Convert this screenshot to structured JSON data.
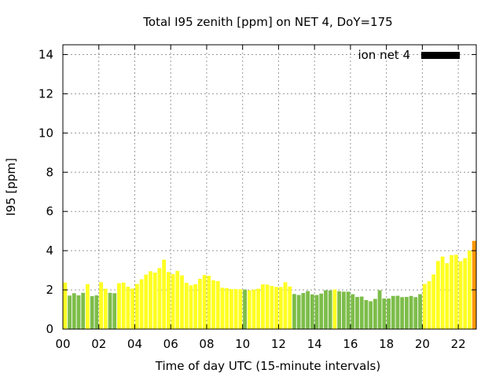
{
  "chart_data": {
    "type": "bar",
    "title": "Total I95 zenith [ppm] on NET 4, DoY=175",
    "xlabel": "Time of day UTC (15-minute intervals)",
    "ylabel": "I95 [ppm]",
    "xlim": [
      0,
      23
    ],
    "ylim": [
      0,
      14.5
    ],
    "x_ticks": [
      0,
      2,
      4,
      6,
      8,
      10,
      12,
      14,
      16,
      18,
      20,
      22
    ],
    "x_tick_labels": [
      "00",
      "02",
      "04",
      "06",
      "08",
      "10",
      "12",
      "14",
      "16",
      "18",
      "20",
      "22"
    ],
    "y_ticks": [
      0,
      2,
      4,
      6,
      8,
      10,
      12,
      14
    ],
    "y_tick_labels": [
      "0",
      "2",
      "4",
      "6",
      "8",
      "10",
      "12",
      "14"
    ],
    "grid": true,
    "legend": {
      "placement": "top-right",
      "label": "ion net 4",
      "color": "#000000"
    },
    "colors": {
      "yellow": "#ffff22",
      "green": "#7dbd4a",
      "orange": "#ff9900"
    },
    "bar_interval_hours": 0.25,
    "series": [
      {
        "values": [
          2.37,
          1.71,
          1.83,
          1.72,
          1.85,
          2.29,
          1.68,
          1.72,
          2.39,
          2.06,
          1.85,
          1.83,
          2.34,
          2.37,
          2.16,
          2.07,
          2.3,
          2.54,
          2.78,
          2.95,
          2.88,
          3.11,
          3.54,
          2.91,
          2.8,
          2.97,
          2.74,
          2.36,
          2.23,
          2.29,
          2.56,
          2.76,
          2.72,
          2.49,
          2.45,
          2.11,
          2.09,
          2.04,
          2.04,
          2.03,
          2.02,
          1.98,
          2.02,
          2.06,
          2.28,
          2.27,
          2.2,
          2.15,
          2.15,
          2.39,
          2.17,
          1.79,
          1.74,
          1.84,
          1.94,
          1.77,
          1.74,
          1.81,
          1.98,
          1.97,
          2.02,
          1.93,
          1.91,
          1.91,
          1.78,
          1.64,
          1.66,
          1.48,
          1.42,
          1.54,
          1.98,
          1.56,
          1.56,
          1.69,
          1.7,
          1.63,
          1.64,
          1.69,
          1.63,
          1.78,
          2.3,
          2.44,
          2.79,
          3.47,
          3.7,
          3.36,
          3.77,
          3.79,
          3.46,
          3.62,
          4.0,
          4.5
        ],
        "colors": [
          "yellow",
          "green",
          "green",
          "green",
          "green",
          "yellow",
          "green",
          "green",
          "yellow",
          "yellow",
          "green",
          "green",
          "yellow",
          "yellow",
          "yellow",
          "yellow",
          "yellow",
          "yellow",
          "yellow",
          "yellow",
          "yellow",
          "yellow",
          "yellow",
          "yellow",
          "yellow",
          "yellow",
          "yellow",
          "yellow",
          "yellow",
          "yellow",
          "yellow",
          "yellow",
          "yellow",
          "yellow",
          "yellow",
          "yellow",
          "yellow",
          "yellow",
          "yellow",
          "yellow",
          "green",
          "yellow",
          "yellow",
          "yellow",
          "yellow",
          "yellow",
          "yellow",
          "yellow",
          "yellow",
          "yellow",
          "yellow",
          "green",
          "green",
          "green",
          "green",
          "green",
          "green",
          "green",
          "green",
          "green",
          "yellow",
          "green",
          "green",
          "green",
          "green",
          "green",
          "green",
          "green",
          "green",
          "green",
          "green",
          "green",
          "green",
          "green",
          "green",
          "green",
          "green",
          "green",
          "green",
          "green",
          "yellow",
          "yellow",
          "yellow",
          "yellow",
          "yellow",
          "yellow",
          "yellow",
          "yellow",
          "yellow",
          "yellow",
          "yellow",
          "orange"
        ]
      }
    ]
  }
}
